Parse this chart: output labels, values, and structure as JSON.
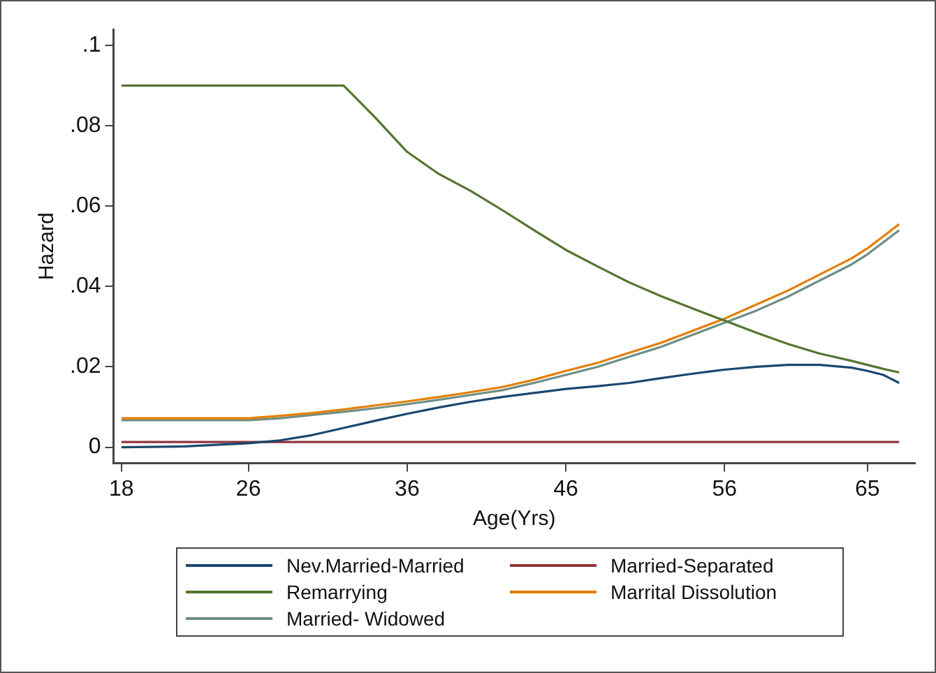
{
  "chart_data": {
    "type": "line",
    "xlabel": "Age(Yrs)",
    "ylabel": "Hazard",
    "legend": "bottom",
    "marker": "none",
    "line_style": "solid",
    "grid": false,
    "xlim": [
      17.5,
      68
    ],
    "xticks": [
      18,
      26,
      36,
      46,
      56,
      65
    ],
    "ylim": [
      -0.004,
      0.104
    ],
    "yticks": [
      0,
      {
        "value": 0.02,
        "label": ".02"
      },
      {
        "value": 0.04,
        "label": ".04"
      },
      {
        "value": 0.06,
        "label": ".06"
      },
      {
        "value": 0.08,
        "label": ".08"
      },
      {
        "value": 0.1,
        "label": ".1"
      }
    ],
    "x": [
      18,
      22,
      26,
      28,
      30,
      32,
      34,
      36,
      38,
      40,
      42,
      44,
      46,
      48,
      50,
      52,
      54,
      56,
      58,
      60,
      62,
      64,
      65,
      66,
      67
    ],
    "series": [
      {
        "name": "Nev.Married-Married",
        "color": "#1a476f",
        "values": [
          0,
          0.0002,
          0.001,
          0.0017,
          0.003,
          0.0048,
          0.0066,
          0.0083,
          0.0099,
          0.0113,
          0.0125,
          0.0135,
          0.0145,
          0.0152,
          0.016,
          0.0172,
          0.0183,
          0.0193,
          0.02,
          0.0205,
          0.0205,
          0.0198,
          0.019,
          0.018,
          0.016
        ]
      },
      {
        "name": "Married-Separated",
        "color": "#90353b",
        "values": [
          0.0013,
          0.0013,
          0.0013,
          0.0013,
          0.0013,
          0.0013,
          0.0013,
          0.0013,
          0.0013,
          0.0013,
          0.0013,
          0.0013,
          0.0013,
          0.0013,
          0.0013,
          0.0013,
          0.0013,
          0.0013,
          0.0013,
          0.0013,
          0.0013,
          0.0013,
          0.0013,
          0.0013,
          0.0013
        ]
      },
      {
        "name": "Remarrying",
        "color": "#55752f",
        "values": [
          0.09,
          0.09,
          0.09,
          0.09,
          0.09,
          0.09,
          0.082,
          0.0735,
          0.068,
          0.0638,
          0.059,
          0.054,
          0.0491,
          0.045,
          0.041,
          0.0376,
          0.0345,
          0.0315,
          0.0285,
          0.0257,
          0.0233,
          0.0215,
          0.0205,
          0.0195,
          0.0186
        ]
      },
      {
        "name": "Marrital Dissolution",
        "color": "#e37e00",
        "values": [
          0.0072,
          0.0072,
          0.0072,
          0.0078,
          0.0085,
          0.0094,
          0.0104,
          0.0114,
          0.0125,
          0.0137,
          0.015,
          0.0168,
          0.019,
          0.021,
          0.0235,
          0.026,
          0.029,
          0.032,
          0.0355,
          0.039,
          0.043,
          0.047,
          0.0495,
          0.0525,
          0.0555
        ]
      },
      {
        "name": "Married- Widowed",
        "color": "#6e8e84",
        "values": [
          0.0067,
          0.0067,
          0.0067,
          0.0072,
          0.008,
          0.0088,
          0.0097,
          0.0107,
          0.0118,
          0.013,
          0.0142,
          0.016,
          0.018,
          0.02,
          0.0225,
          0.025,
          0.028,
          0.031,
          0.034,
          0.0375,
          0.0415,
          0.0455,
          0.048,
          0.051,
          0.054
        ]
      }
    ]
  }
}
